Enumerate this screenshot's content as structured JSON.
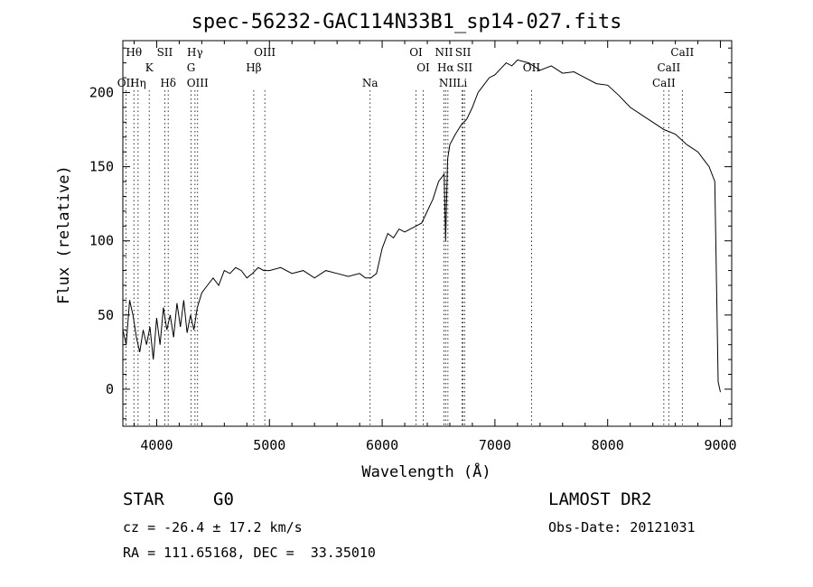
{
  "chart_data": {
    "type": "line",
    "title": "spec-56232-GAC114N33B1_sp14-027.fits",
    "xlabel": "Wavelength (Å)",
    "ylabel": "Flux (relative)",
    "xlim": [
      3700,
      9100
    ],
    "ylim": [
      -25,
      235
    ],
    "xticks": [
      "4000",
      "5000",
      "6000",
      "7000",
      "8000",
      "9000"
    ],
    "yticks": [
      "0",
      "50",
      "100",
      "150",
      "200"
    ],
    "grid": false,
    "series": [
      {
        "x": [
          3700,
          3730,
          3760,
          3790,
          3820,
          3850,
          3880,
          3910,
          3940,
          3970,
          4000,
          4030,
          4060,
          4090,
          4120,
          4150,
          4180,
          4210,
          4240,
          4270,
          4300,
          4330,
          4360,
          4400,
          4450,
          4500,
          4550,
          4600,
          4650,
          4700,
          4750,
          4800,
          4850,
          4900,
          4950,
          5000,
          5100,
          5200,
          5300,
          5400,
          5500,
          5600,
          5700,
          5800,
          5850,
          5900,
          5950,
          6000,
          6050,
          6100,
          6150,
          6200,
          6250,
          6300,
          6350,
          6400,
          6450,
          6500,
          6550,
          6563,
          6580,
          6600,
          6650,
          6700,
          6750,
          6800,
          6850,
          6900,
          6950,
          7000,
          7050,
          7100,
          7150,
          7200,
          7300,
          7400,
          7500,
          7600,
          7700,
          7800,
          7900,
          8000,
          8100,
          8200,
          8300,
          8400,
          8500,
          8600,
          8700,
          8800,
          8850,
          8900,
          8950,
          8980,
          9000
        ],
        "y": [
          40,
          30,
          60,
          50,
          35,
          25,
          40,
          30,
          42,
          20,
          48,
          30,
          55,
          40,
          50,
          35,
          58,
          42,
          60,
          38,
          50,
          40,
          55,
          65,
          70,
          75,
          70,
          80,
          78,
          82,
          80,
          75,
          78,
          82,
          80,
          80,
          82,
          78,
          80,
          75,
          80,
          78,
          76,
          78,
          75,
          75,
          78,
          95,
          105,
          102,
          108,
          106,
          108,
          110,
          112,
          120,
          128,
          140,
          145,
          100,
          155,
          165,
          172,
          178,
          182,
          190,
          200,
          205,
          210,
          212,
          216,
          220,
          218,
          222,
          220,
          215,
          218,
          213,
          214,
          210,
          206,
          205,
          198,
          190,
          185,
          180,
          175,
          172,
          165,
          160,
          155,
          150,
          140,
          5,
          -2
        ]
      }
    ],
    "annotations": [
      {
        "label": "Hθ",
        "x": 3798,
        "row": 1
      },
      {
        "label": "OII",
        "x": 3727,
        "row": 3
      },
      {
        "label": "Hη",
        "x": 3835,
        "row": 3
      },
      {
        "label": "K",
        "x": 3934,
        "row": 2
      },
      {
        "label": "SII",
        "x": 4072,
        "row": 1
      },
      {
        "label": "Hδ",
        "x": 4102,
        "row": 3
      },
      {
        "label": "Hγ",
        "x": 4340,
        "row": 1
      },
      {
        "label": "G",
        "x": 4305,
        "row": 2
      },
      {
        "label": "OIII",
        "x": 4363,
        "row": 3
      },
      {
        "label": "OIII",
        "x": 4959,
        "row": 1
      },
      {
        "label": "Hβ",
        "x": 4861,
        "row": 2
      },
      {
        "label": "Na",
        "x": 5893,
        "row": 3
      },
      {
        "label": "OI",
        "x": 6300,
        "row": 1
      },
      {
        "label": "OI",
        "x": 6364,
        "row": 2
      },
      {
        "label": "NII",
        "x": 6548,
        "row": 1
      },
      {
        "label": "SII",
        "x": 6717,
        "row": 1
      },
      {
        "label": "Hα",
        "x": 6563,
        "row": 2
      },
      {
        "label": "SII",
        "x": 6731,
        "row": 2
      },
      {
        "label": "NII",
        "x": 6583,
        "row": 3
      },
      {
        "label": "Li",
        "x": 6707,
        "row": 3
      },
      {
        "label": "OII",
        "x": 7325,
        "row": 2
      },
      {
        "label": "CaII",
        "x": 8662,
        "row": 1
      },
      {
        "label": "CaII",
        "x": 8542,
        "row": 2
      },
      {
        "label": "CaII",
        "x": 8498,
        "row": 3
      }
    ]
  },
  "info": {
    "object_class": "STAR",
    "subclass": "G0",
    "survey": "LAMOST DR2",
    "redshift": "cz = -26.4 ± 17.2 km/s",
    "obs_date": "Obs-Date: 20121031",
    "coords": "RA = 111.65168, DEC =  33.35010"
  }
}
